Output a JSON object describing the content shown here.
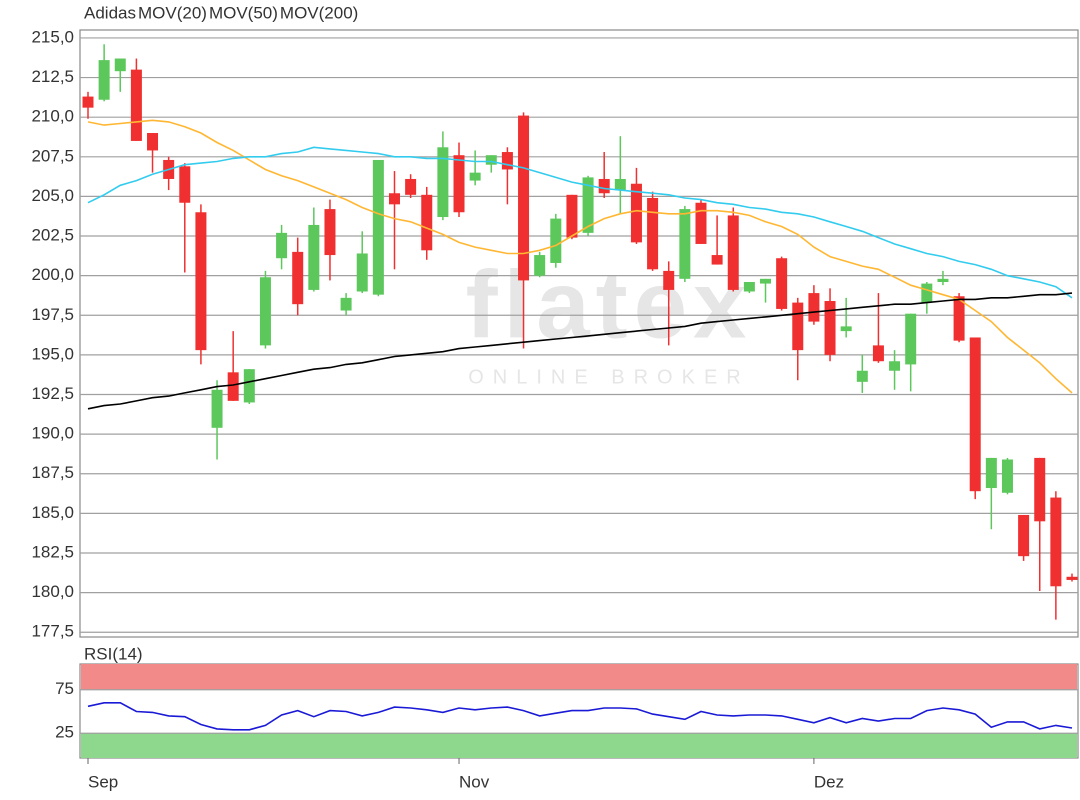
{
  "chart_data": [
    {
      "type": "candlestick",
      "watermark": "flatex",
      "watermark_subtitle": "ONLINE BROKER",
      "ylim": [
        177.2,
        215.5
      ],
      "yticks": [
        {
          "value": 177.5,
          "label": "177,5"
        },
        {
          "value": 180,
          "label": "180,0"
        },
        {
          "value": 182.5,
          "label": "182,5"
        },
        {
          "value": 185,
          "label": "185,0"
        },
        {
          "value": 187.5,
          "label": "187,5"
        },
        {
          "value": 190,
          "label": "190,0"
        },
        {
          "value": 192.5,
          "label": "192,5"
        },
        {
          "value": 195,
          "label": "195,0"
        },
        {
          "value": 197.5,
          "label": "197,5"
        },
        {
          "value": 200,
          "label": "200,0"
        },
        {
          "value": 202.5,
          "label": "202,5"
        },
        {
          "value": 205,
          "label": "205,0"
        },
        {
          "value": 207.5,
          "label": "207,5"
        },
        {
          "value": 210,
          "label": "210,0"
        },
        {
          "value": 212.5,
          "label": "212,5"
        },
        {
          "value": 215,
          "label": "215,0"
        }
      ],
      "grid": true,
      "candles": {
        "name": "Adidas",
        "color": "#f2603c",
        "up_color": "#5cc85c",
        "down_color": "#f03030",
        "open": [
          211.3,
          211.1,
          212.9,
          213.0,
          209.0,
          207.3,
          206.9,
          204.0,
          190.4,
          193.9,
          192.0,
          195.6,
          201.1,
          201.5,
          199.1,
          204.2,
          197.8,
          199.0,
          198.8,
          205.2,
          206.1,
          205.1,
          203.7,
          207.6,
          206.0,
          207.0,
          207.8,
          210.1,
          200.0,
          200.8,
          205.1,
          202.7,
          206.1,
          205.4,
          205.8,
          204.9,
          200.3,
          199.8,
          204.6,
          201.3,
          203.8,
          199.0,
          199.5,
          201.1,
          198.3,
          198.9,
          198.4,
          196.5,
          193.3,
          195.6,
          194.0,
          194.4,
          198.3,
          199.6,
          198.7,
          196.1,
          186.6,
          186.3,
          184.9,
          188.5,
          186.0,
          181.0
        ],
        "high": [
          211.6,
          214.6,
          213.7,
          213.7,
          209.0,
          207.5,
          207.1,
          204.5,
          193.4,
          196.5,
          194.1,
          200.3,
          203.2,
          202.4,
          204.3,
          204.8,
          198.9,
          202.8,
          207.3,
          206.6,
          206.4,
          205.6,
          209.1,
          208.4,
          207.9,
          207.6,
          208.1,
          210.3,
          201.5,
          203.9,
          205.1,
          206.3,
          207.8,
          208.8,
          206.8,
          205.3,
          200.9,
          204.4,
          204.8,
          203.8,
          204.3,
          199.6,
          199.8,
          201.2,
          198.6,
          199.4,
          199.2,
          198.6,
          195.0,
          198.9,
          195.3,
          197.6,
          199.6,
          200.3,
          198.9,
          196.1,
          188.5,
          188.5,
          184.9,
          188.5,
          186.4,
          181.2
        ],
        "low": [
          209.9,
          211.0,
          211.6,
          208.5,
          206.5,
          205.4,
          200.2,
          194.4,
          188.4,
          192.1,
          191.9,
          195.4,
          200.4,
          197.5,
          199.0,
          199.7,
          197.5,
          198.9,
          198.7,
          200.4,
          204.9,
          201.0,
          203.5,
          203.7,
          205.7,
          206.5,
          204.5,
          195.4,
          199.9,
          200.5,
          202.3,
          202.5,
          204.9,
          203.9,
          202.0,
          200.3,
          195.6,
          199.6,
          202.0,
          200.7,
          199.0,
          198.9,
          198.3,
          197.8,
          193.4,
          196.9,
          194.6,
          196.1,
          192.6,
          194.5,
          192.8,
          192.7,
          197.6,
          199.4,
          195.8,
          185.9,
          184.0,
          186.2,
          182.0,
          180.1,
          178.3,
          180.7
        ],
        "close": [
          210.6,
          213.6,
          213.7,
          208.5,
          207.9,
          206.1,
          204.6,
          195.3,
          192.8,
          192.1,
          194.1,
          199.9,
          202.7,
          198.2,
          203.2,
          201.3,
          198.6,
          201.4,
          207.3,
          204.5,
          205.1,
          201.6,
          208.1,
          204.0,
          206.5,
          207.6,
          206.7,
          199.7,
          201.3,
          203.6,
          202.4,
          206.2,
          205.2,
          206.1,
          202.1,
          200.4,
          199.1,
          204.2,
          202.0,
          200.7,
          199.1,
          199.6,
          199.8,
          197.9,
          195.3,
          197.1,
          195.0,
          196.8,
          194.0,
          194.6,
          194.6,
          197.6,
          199.5,
          199.8,
          195.9,
          186.4,
          188.5,
          188.4,
          182.3,
          184.5,
          180.4,
          180.8
        ]
      },
      "series": [
        {
          "name": "MOV(20)",
          "color": "#ffb733",
          "values": [
            209.7,
            209.5,
            209.6,
            209.7,
            209.8,
            209.7,
            209.4,
            209.0,
            208.4,
            207.9,
            207.3,
            206.7,
            206.3,
            206.0,
            205.6,
            205.2,
            204.8,
            204.3,
            203.9,
            203.6,
            203.4,
            203.0,
            202.6,
            202.1,
            201.8,
            201.6,
            201.4,
            201.4,
            201.6,
            201.9,
            202.5,
            203.1,
            203.6,
            203.9,
            204.1,
            204.0,
            203.9,
            203.9,
            204.1,
            204.1,
            204.0,
            203.8,
            203.4,
            203.1,
            202.6,
            201.8,
            201.2,
            200.9,
            200.6,
            200.4,
            199.9,
            199.4,
            199.1,
            198.8,
            198.5,
            197.8,
            197.1,
            196.1,
            195.3,
            194.5,
            193.5,
            192.6
          ]
        },
        {
          "name": "MOV(50)",
          "color": "#33ccee",
          "values": [
            204.6,
            205.1,
            205.7,
            206.0,
            206.4,
            206.7,
            207.0,
            207.1,
            207.2,
            207.4,
            207.5,
            207.5,
            207.7,
            207.8,
            208.1,
            208.0,
            207.9,
            207.8,
            207.7,
            207.5,
            207.5,
            207.4,
            207.4,
            207.3,
            207.2,
            207.2,
            207.0,
            206.8,
            206.5,
            206.2,
            205.9,
            205.7,
            205.5,
            205.4,
            205.3,
            205.2,
            205.1,
            204.9,
            204.8,
            204.6,
            204.5,
            204.3,
            204.2,
            204.0,
            203.9,
            203.7,
            203.4,
            203.1,
            202.8,
            202.4,
            202.0,
            201.7,
            201.4,
            201.2,
            200.9,
            200.7,
            200.4,
            200.0,
            199.8,
            199.6,
            199.3,
            198.6
          ]
        },
        {
          "name": "MOV(200)",
          "color": "#000000",
          "values": [
            191.6,
            191.8,
            191.9,
            192.1,
            192.3,
            192.4,
            192.6,
            192.8,
            193.0,
            193.1,
            193.3,
            193.5,
            193.7,
            193.9,
            194.1,
            194.2,
            194.4,
            194.5,
            194.7,
            194.9,
            195.0,
            195.1,
            195.2,
            195.4,
            195.5,
            195.6,
            195.7,
            195.8,
            195.9,
            196.0,
            196.1,
            196.2,
            196.3,
            196.4,
            196.5,
            196.6,
            196.7,
            196.8,
            197.0,
            197.1,
            197.2,
            197.3,
            197.4,
            197.5,
            197.6,
            197.7,
            197.8,
            197.9,
            198.0,
            198.1,
            198.2,
            198.2,
            198.3,
            198.4,
            198.5,
            198.5,
            198.6,
            198.6,
            198.7,
            198.8,
            198.8,
            198.9
          ]
        }
      ]
    },
    {
      "type": "line",
      "ylim": [
        0,
        100
      ],
      "yticks": [
        25,
        75
      ],
      "grid": true,
      "zones": [
        {
          "from": 75,
          "to": 100,
          "color": "#f28a8a"
        },
        {
          "from": 0,
          "to": 25,
          "color": "#8ed88e"
        }
      ],
      "categories": [
        "Sep",
        null,
        null,
        null,
        null,
        null,
        null,
        null,
        null,
        null,
        null,
        null,
        null,
        null,
        null,
        null,
        null,
        null,
        null,
        null,
        null,
        null,
        null,
        "Nov",
        null,
        null,
        null,
        null,
        null,
        null,
        null,
        null,
        null,
        null,
        null,
        null,
        null,
        null,
        null,
        null,
        null,
        null,
        null,
        null,
        null,
        "Dez",
        null,
        null,
        null,
        null,
        null,
        null,
        null,
        null,
        null,
        null,
        null,
        null,
        null,
        null,
        null,
        null
      ],
      "series": [
        {
          "name": "RSI(14)",
          "color": "#1a1ad6",
          "values": [
            56,
            60,
            60,
            50,
            49,
            45,
            44,
            35,
            30,
            29,
            29,
            34,
            46,
            51,
            44,
            51,
            50,
            45,
            49,
            55,
            54,
            52,
            49,
            54,
            52,
            54,
            55,
            51,
            45,
            48,
            51,
            51,
            54,
            54,
            53,
            47,
            44,
            41,
            50,
            46,
            45,
            46,
            46,
            45,
            41,
            37,
            43,
            37,
            42,
            39,
            42,
            42,
            51,
            54,
            52,
            47,
            32,
            38,
            38,
            30,
            34,
            31
          ]
        }
      ]
    }
  ]
}
